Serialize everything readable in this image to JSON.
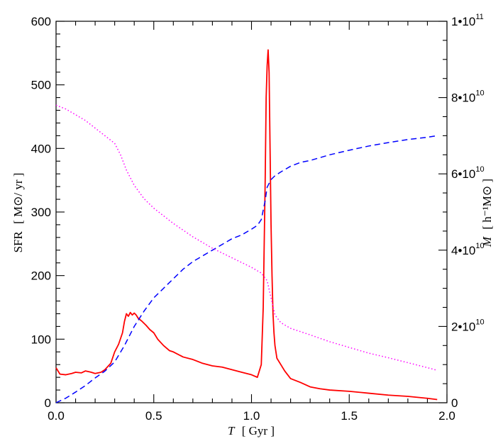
{
  "chart_data": {
    "type": "line",
    "title": "",
    "xlabel": "T",
    "xlabel_unit": "[ Gyr ]",
    "ylabel": "SFR",
    "ylabel_unit": "[ M⊙/ yr ]",
    "y2label": "M",
    "y2label_unit": "[ h⁻¹M⊙ ]",
    "xlim": [
      0,
      2.0
    ],
    "ylim": [
      0,
      600
    ],
    "y2lim": [
      0,
      100000000000.0
    ],
    "x_ticks": [
      {
        "v": 0.0,
        "label": "0.0"
      },
      {
        "v": 0.5,
        "label": "0.5"
      },
      {
        "v": 1.0,
        "label": "1.0"
      },
      {
        "v": 1.5,
        "label": "1.5"
      },
      {
        "v": 2.0,
        "label": "2.0"
      }
    ],
    "y_ticks": [
      {
        "v": 0,
        "label": "0"
      },
      {
        "v": 100,
        "label": "100"
      },
      {
        "v": 200,
        "label": "200"
      },
      {
        "v": 300,
        "label": "300"
      },
      {
        "v": 400,
        "label": "400"
      },
      {
        "v": 500,
        "label": "500"
      },
      {
        "v": 600,
        "label": "600"
      }
    ],
    "y2_ticks": [
      {
        "v": 0,
        "base": "0",
        "exp": ""
      },
      {
        "v": 20000000000.0,
        "base": "2•10",
        "exp": "10"
      },
      {
        "v": 40000000000.0,
        "base": "4•10",
        "exp": "10"
      },
      {
        "v": 60000000000.0,
        "base": "6•10",
        "exp": "10"
      },
      {
        "v": 80000000000.0,
        "base": "8•10",
        "exp": "10"
      },
      {
        "v": 100000000000.0,
        "base": "1•10",
        "exp": "11"
      }
    ],
    "series": [
      {
        "axis": "left",
        "color": "#ff0000",
        "style": "solid",
        "x": [
          0.0,
          0.02,
          0.05,
          0.08,
          0.1,
          0.13,
          0.15,
          0.18,
          0.2,
          0.23,
          0.25,
          0.28,
          0.3,
          0.32,
          0.34,
          0.35,
          0.36,
          0.37,
          0.38,
          0.39,
          0.4,
          0.41,
          0.42,
          0.44,
          0.46,
          0.48,
          0.5,
          0.52,
          0.55,
          0.58,
          0.6,
          0.65,
          0.7,
          0.75,
          0.8,
          0.85,
          0.9,
          0.95,
          1.0,
          1.03,
          1.05,
          1.06,
          1.07,
          1.075,
          1.08,
          1.085,
          1.09,
          1.095,
          1.1,
          1.105,
          1.11,
          1.115,
          1.12,
          1.13,
          1.15,
          1.17,
          1.2,
          1.25,
          1.3,
          1.35,
          1.4,
          1.5,
          1.6,
          1.7,
          1.8,
          1.9,
          1.95
        ],
        "y": [
          55,
          45,
          44,
          46,
          48,
          47,
          50,
          48,
          46,
          48,
          52,
          62,
          80,
          92,
          110,
          128,
          140,
          136,
          142,
          138,
          141,
          138,
          133,
          128,
          122,
          115,
          110,
          100,
          90,
          82,
          80,
          72,
          68,
          62,
          58,
          56,
          52,
          48,
          44,
          40,
          60,
          150,
          350,
          480,
          530,
          555,
          520,
          400,
          280,
          200,
          140,
          110,
          90,
          70,
          60,
          50,
          38,
          32,
          25,
          22,
          20,
          18,
          15,
          12,
          10,
          7,
          5
        ]
      },
      {
        "axis": "right",
        "color": "#0000ff",
        "style": "dashed",
        "x": [
          0.0,
          0.05,
          0.1,
          0.15,
          0.2,
          0.25,
          0.3,
          0.35,
          0.4,
          0.45,
          0.5,
          0.55,
          0.6,
          0.65,
          0.7,
          0.75,
          0.8,
          0.85,
          0.9,
          0.95,
          1.0,
          1.03,
          1.05,
          1.07,
          1.08,
          1.1,
          1.12,
          1.15,
          1.2,
          1.25,
          1.3,
          1.4,
          1.5,
          1.6,
          1.7,
          1.8,
          1.9,
          1.95
        ],
        "y": [
          0.0,
          1200000000.0,
          2800000000.0,
          4500000000.0,
          6500000000.0,
          8300000000.0,
          10700000000.0,
          15000000000.0,
          20000000000.0,
          24000000000.0,
          27500000000.0,
          30000000000.0,
          32500000000.0,
          35000000000.0,
          37000000000.0,
          38500000000.0,
          40000000000.0,
          41500000000.0,
          43000000000.0,
          44000000000.0,
          45500000000.0,
          46500000000.0,
          48000000000.0,
          53000000000.0,
          56500000000.0,
          58500000000.0,
          59500000000.0,
          60500000000.0,
          62000000000.0,
          63000000000.0,
          63500000000.0,
          65000000000.0,
          66200000000.0,
          67300000000.0,
          68200000000.0,
          69000000000.0,
          69600000000.0,
          70000000000.0
        ]
      },
      {
        "axis": "right",
        "color": "#ff00ff",
        "style": "dotted",
        "x": [
          0.0,
          0.05,
          0.1,
          0.15,
          0.2,
          0.25,
          0.3,
          0.33,
          0.36,
          0.4,
          0.45,
          0.5,
          0.55,
          0.6,
          0.7,
          0.8,
          0.9,
          1.0,
          1.05,
          1.08,
          1.1,
          1.12,
          1.15,
          1.2,
          1.3,
          1.4,
          1.5,
          1.6,
          1.7,
          1.8,
          1.9,
          1.95
        ],
        "y": [
          78000000000.0,
          77000000000.0,
          75500000000.0,
          74000000000.0,
          72000000000.0,
          70000000000.0,
          68000000000.0,
          65000000000.0,
          61000000000.0,
          57000000000.0,
          53500000000.0,
          51000000000.0,
          49000000000.0,
          47000000000.0,
          43500000000.0,
          40500000000.0,
          38000000000.0,
          35500000000.0,
          34000000000.0,
          32000000000.0,
          27500000000.0,
          23000000000.0,
          21000000000.0,
          19500000000.0,
          17800000000.0,
          16000000000.0,
          14500000000.0,
          13000000000.0,
          11800000000.0,
          10500000000.0,
          9200000000.0,
          8500000000.0
        ]
      }
    ]
  }
}
